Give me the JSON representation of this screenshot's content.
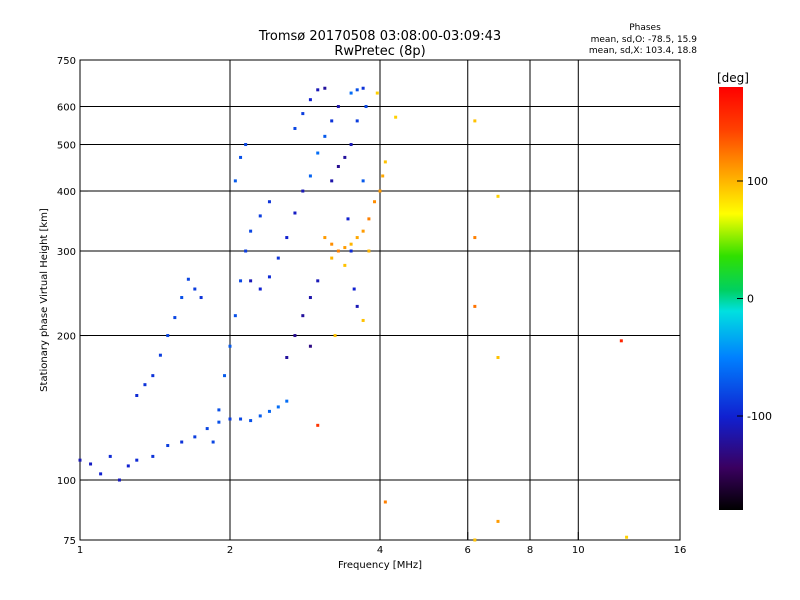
{
  "header": {
    "title": "Tromsø 20170508 03:08:00-03:09:43",
    "subtitle": "RwPretec (8p)",
    "phase_heading": "Phases",
    "phase_o": "mean, sd,O: -78.5, 15.9",
    "phase_x": "mean, sd,X: 103.4, 18.8"
  },
  "chart_data": {
    "type": "scatter",
    "xlabel": "Frequency [MHz]",
    "ylabel": "Stationary phase Virtual Height [km]",
    "xscale": "log",
    "yscale": "log",
    "xlim": [
      1,
      16
    ],
    "ylim": [
      75,
      750
    ],
    "xticks": [
      1,
      2,
      4,
      6,
      8,
      10,
      16
    ],
    "yticks": [
      75,
      100,
      200,
      300,
      400,
      500,
      600,
      750
    ],
    "grid_x": [
      2,
      4,
      6,
      8,
      10
    ],
    "grid_y": [
      100,
      200,
      300,
      400,
      500,
      600
    ],
    "grid": true,
    "colorbar": {
      "label": "[deg]",
      "range": [
        -180,
        180
      ],
      "ticks": [
        100,
        0,
        -100
      ]
    },
    "series": [
      {
        "points": [
          [
            1.0,
            110,
            -110
          ],
          [
            1.05,
            108,
            -105
          ],
          [
            1.1,
            103,
            -100
          ],
          [
            1.15,
            112,
            -95
          ],
          [
            1.2,
            100,
            -108
          ],
          [
            1.25,
            107,
            -100
          ],
          [
            1.3,
            110,
            -95
          ],
          [
            1.4,
            112,
            -90
          ],
          [
            1.5,
            118,
            -85
          ],
          [
            1.6,
            120,
            -90
          ],
          [
            1.7,
            123,
            -85
          ],
          [
            1.8,
            128,
            -80
          ],
          [
            1.9,
            132,
            -75
          ],
          [
            2.0,
            134,
            -85
          ],
          [
            2.1,
            134,
            -80
          ],
          [
            2.2,
            133,
            -75
          ],
          [
            2.3,
            136,
            -70
          ],
          [
            2.4,
            139,
            -65
          ],
          [
            2.5,
            142,
            -60
          ],
          [
            2.6,
            146,
            -60
          ],
          [
            1.3,
            150,
            -95
          ],
          [
            1.35,
            158,
            -90
          ],
          [
            1.4,
            165,
            -90
          ],
          [
            1.45,
            182,
            -85
          ],
          [
            1.5,
            200,
            -80
          ],
          [
            1.55,
            218,
            -80
          ],
          [
            1.6,
            240,
            -75
          ],
          [
            1.65,
            262,
            -80
          ],
          [
            1.7,
            250,
            -85
          ],
          [
            1.75,
            240,
            -90
          ],
          [
            1.85,
            120,
            -80
          ],
          [
            1.9,
            140,
            -75
          ],
          [
            1.95,
            165,
            -70
          ],
          [
            2.0,
            190,
            -70
          ],
          [
            2.05,
            220,
            -75
          ],
          [
            2.1,
            260,
            -80
          ],
          [
            2.15,
            300,
            -85
          ],
          [
            2.2,
            330,
            -80
          ],
          [
            2.3,
            355,
            -85
          ],
          [
            2.4,
            380,
            -90
          ],
          [
            2.05,
            420,
            -70
          ],
          [
            2.1,
            470,
            -75
          ],
          [
            2.15,
            500,
            -80
          ],
          [
            2.2,
            260,
            -110
          ],
          [
            2.3,
            250,
            -100
          ],
          [
            2.4,
            265,
            -95
          ],
          [
            2.5,
            290,
            -90
          ],
          [
            2.6,
            320,
            -100
          ],
          [
            2.7,
            360,
            -105
          ],
          [
            2.8,
            400,
            -110
          ],
          [
            2.6,
            180,
            -120
          ],
          [
            2.7,
            200,
            -125
          ],
          [
            2.8,
            220,
            -120
          ],
          [
            2.9,
            240,
            -115
          ],
          [
            3.0,
            260,
            -110
          ],
          [
            2.7,
            540,
            -80
          ],
          [
            2.8,
            580,
            -85
          ],
          [
            2.9,
            620,
            -100
          ],
          [
            3.0,
            650,
            -110
          ],
          [
            3.1,
            655,
            -120
          ],
          [
            2.9,
            430,
            -65
          ],
          [
            3.0,
            480,
            -60
          ],
          [
            3.1,
            520,
            -70
          ],
          [
            3.2,
            560,
            -90
          ],
          [
            3.3,
            600,
            -115
          ],
          [
            3.2,
            420,
            -115
          ],
          [
            3.3,
            450,
            -125
          ],
          [
            3.4,
            470,
            -120
          ],
          [
            3.5,
            500,
            -110
          ],
          [
            3.6,
            560,
            -85
          ],
          [
            3.45,
            350,
            -100
          ],
          [
            3.5,
            300,
            -95
          ],
          [
            3.55,
            250,
            -100
          ],
          [
            3.6,
            230,
            -110
          ],
          [
            3.7,
            420,
            -70
          ],
          [
            3.5,
            640,
            -60
          ],
          [
            3.6,
            650,
            -75
          ],
          [
            3.7,
            655,
            -90
          ],
          [
            3.75,
            600,
            -80
          ],
          [
            2.9,
            190,
            -130
          ]
        ]
      },
      {
        "points": [
          [
            3.1,
            320,
            110
          ],
          [
            3.2,
            310,
            115
          ],
          [
            3.3,
            300,
            120
          ],
          [
            3.4,
            305,
            110
          ],
          [
            3.5,
            310,
            100
          ],
          [
            3.6,
            320,
            105
          ],
          [
            3.7,
            330,
            110
          ],
          [
            3.8,
            350,
            120
          ],
          [
            3.9,
            380,
            115
          ],
          [
            4.0,
            400,
            110
          ],
          [
            4.05,
            430,
            105
          ],
          [
            4.1,
            460,
            95
          ],
          [
            3.95,
            640,
            90
          ],
          [
            4.3,
            570,
            90
          ],
          [
            3.2,
            290,
            100
          ],
          [
            3.4,
            280,
            95
          ],
          [
            3.8,
            300,
            100
          ],
          [
            3.25,
            200,
            95
          ],
          [
            3.7,
            215,
            95
          ],
          [
            3.0,
            130,
            150
          ],
          [
            4.1,
            90,
            120
          ],
          [
            6.2,
            560,
            95
          ],
          [
            6.2,
            320,
            120
          ],
          [
            6.2,
            230,
            125
          ],
          [
            6.2,
            75,
            95
          ],
          [
            6.9,
            180,
            95
          ],
          [
            6.9,
            82,
            110
          ],
          [
            6.9,
            390,
            90
          ],
          [
            12.2,
            195,
            160
          ],
          [
            12.5,
            76,
            90
          ]
        ]
      }
    ]
  }
}
